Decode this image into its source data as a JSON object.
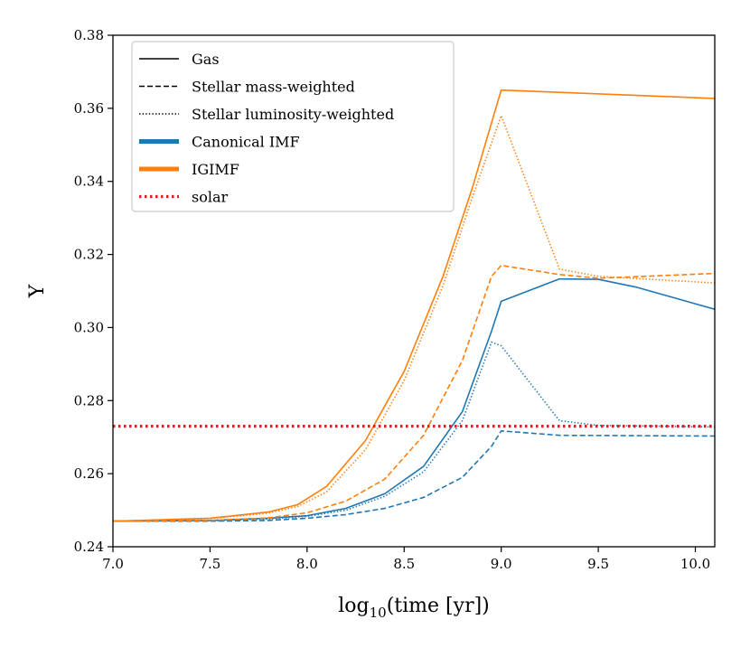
{
  "chart_data": {
    "type": "line",
    "title": "",
    "xlabel_base": "log",
    "xlabel_sub": "10",
    "xlabel_rest": "(time [yr])",
    "ylabel": "Y",
    "xlim": [
      7.0,
      10.1
    ],
    "ylim": [
      0.24,
      0.38
    ],
    "xticks": [
      7.0,
      7.5,
      8.0,
      8.5,
      9.0,
      9.5,
      10.0
    ],
    "xtick_labels": [
      "7.0",
      "7.5",
      "8.0",
      "8.5",
      "9.0",
      "9.5",
      "10.0"
    ],
    "yticks": [
      0.24,
      0.26,
      0.28,
      0.3,
      0.32,
      0.34,
      0.36,
      0.38
    ],
    "ytick_labels": [
      "0.24",
      "0.26",
      "0.28",
      "0.30",
      "0.32",
      "0.34",
      "0.36",
      "0.38"
    ],
    "colors": {
      "canonical": "#1f77b4",
      "igimf": "#ff7f0e",
      "solar": "#e41a1c",
      "legend_black": "#000000"
    },
    "legend": {
      "placement": "top-left",
      "entries": [
        {
          "label": "Gas",
          "style": "solid",
          "color": "#000000"
        },
        {
          "label": "Stellar mass-weighted",
          "style": "dashed",
          "color": "#000000"
        },
        {
          "label": "Stellar luminosity-weighted",
          "style": "dotted",
          "color": "#000000"
        },
        {
          "label": "Canonical IMF",
          "style": "solid-thick",
          "color": "#1f77b4"
        },
        {
          "label": "IGIMF",
          "style": "solid-thick",
          "color": "#ff7f0e"
        },
        {
          "label": "solar",
          "style": "dotted-thick",
          "color": "#e41a1c"
        }
      ]
    },
    "series": [
      {
        "name": "Canonical IMF Gas",
        "color": "#1f77b4",
        "style": "solid",
        "x": [
          7.0,
          7.5,
          7.8,
          8.0,
          8.2,
          8.4,
          8.6,
          8.8,
          8.95,
          9.0,
          9.3,
          9.5,
          9.7,
          10.1
        ],
        "y": [
          0.247,
          0.2472,
          0.2478,
          0.2485,
          0.2505,
          0.2545,
          0.262,
          0.277,
          0.299,
          0.3072,
          0.3133,
          0.3132,
          0.311,
          0.305
        ]
      },
      {
        "name": "Canonical IMF Stellar mass-weighted",
        "color": "#1f77b4",
        "style": "dashed",
        "x": [
          7.0,
          7.5,
          7.8,
          8.0,
          8.2,
          8.4,
          8.6,
          8.8,
          8.95,
          9.0,
          9.3,
          10.1
        ],
        "y": [
          0.247,
          0.247,
          0.2472,
          0.2478,
          0.2488,
          0.2505,
          0.2535,
          0.259,
          0.2675,
          0.2717,
          0.2705,
          0.2703
        ]
      },
      {
        "name": "Canonical IMF Stellar luminosity-weighted",
        "color": "#1f77b4",
        "style": "dotted",
        "x": [
          7.0,
          7.5,
          7.8,
          8.0,
          8.2,
          8.4,
          8.6,
          8.8,
          8.95,
          9.0,
          9.3,
          9.5,
          10.1
        ],
        "y": [
          0.247,
          0.2471,
          0.2476,
          0.2483,
          0.25,
          0.2538,
          0.2605,
          0.2745,
          0.296,
          0.295,
          0.2745,
          0.2732,
          0.2728
        ]
      },
      {
        "name": "IGIMF Gas",
        "color": "#ff7f0e",
        "style": "solid",
        "x": [
          7.0,
          7.5,
          7.8,
          7.95,
          8.1,
          8.3,
          8.5,
          8.7,
          8.85,
          9.0,
          10.1
        ],
        "y": [
          0.247,
          0.2478,
          0.2495,
          0.2515,
          0.2565,
          0.269,
          0.288,
          0.314,
          0.338,
          0.365,
          0.3627
        ]
      },
      {
        "name": "IGIMF Stellar mass-weighted",
        "color": "#ff7f0e",
        "style": "dashed",
        "x": [
          7.0,
          7.5,
          7.8,
          8.0,
          8.2,
          8.4,
          8.6,
          8.8,
          8.95,
          9.0,
          9.3,
          9.5,
          10.1
        ],
        "y": [
          0.247,
          0.2472,
          0.2479,
          0.2493,
          0.2525,
          0.2585,
          0.2705,
          0.291,
          0.314,
          0.317,
          0.3145,
          0.3135,
          0.3148
        ]
      },
      {
        "name": "IGIMF Stellar luminosity-weighted",
        "color": "#ff7f0e",
        "style": "dotted",
        "x": [
          7.0,
          7.5,
          7.8,
          7.95,
          8.1,
          8.3,
          8.5,
          8.7,
          8.85,
          9.0,
          9.3,
          9.5,
          10.1
        ],
        "y": [
          0.247,
          0.2477,
          0.2492,
          0.251,
          0.255,
          0.2665,
          0.2855,
          0.3115,
          0.3355,
          0.358,
          0.316,
          0.314,
          0.3122
        ]
      },
      {
        "name": "solar",
        "color": "#e41a1c",
        "style": "dotted-thick",
        "x": [
          7.0,
          10.1
        ],
        "y": [
          0.273,
          0.273
        ]
      }
    ]
  }
}
